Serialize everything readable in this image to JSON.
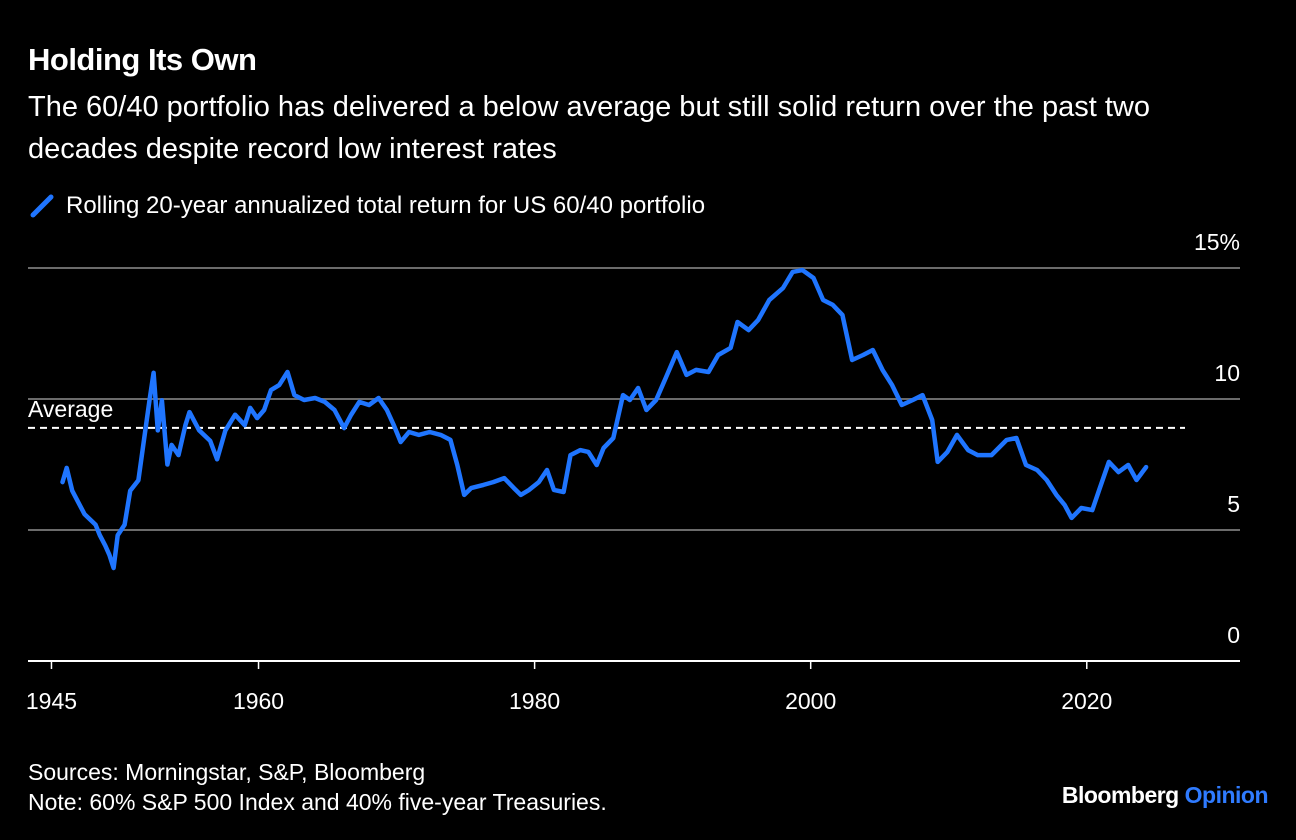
{
  "chart_data": {
    "type": "line",
    "title": "Holding Its Own",
    "subtitle": "The 60/40 portfolio has delivered a below average but still solid return over the past two decades despite record low interest rates",
    "sources": "Sources: Morningstar, S&P, Bloomberg",
    "note": "Note: 60% S&P 500 Index and 40% five-year Treasuries.",
    "brand": [
      "Bloomberg",
      "Opinion"
    ],
    "xlim": [
      1943.3,
      2031.1
    ],
    "xticks": [
      1945,
      1960,
      1980,
      2000,
      2020
    ],
    "ylim": [
      0,
      15
    ],
    "yticks": [
      0,
      5,
      10,
      {
        "value": 15,
        "label": "15%"
      }
    ],
    "grid": true,
    "annotations": [
      {
        "label": "Average",
        "value": 8.9
      }
    ],
    "x": [
      1945.8,
      1946.1,
      1946.5,
      1946.9,
      1947.4,
      1948.2,
      1948.5,
      1948.9,
      1949.2,
      1949.5,
      1949.8,
      1950.3,
      1950.7,
      1951.3,
      1951.8,
      1952.1,
      1952.4,
      1952.7,
      1953.0,
      1953.4,
      1953.7,
      1954.2,
      1954.7,
      1955.0,
      1955.7,
      1956.5,
      1957.0,
      1957.6,
      1958.3,
      1959.0,
      1959.4,
      1959.9,
      1960.4,
      1960.9,
      1961.5,
      1962.1,
      1962.6,
      1963.3,
      1964.1,
      1964.8,
      1965.5,
      1966.2,
      1966.7,
      1967.3,
      1968.0,
      1968.7,
      1969.3,
      1969.8,
      1970.3,
      1970.9,
      1971.6,
      1972.4,
      1973.2,
      1973.9,
      1974.4,
      1974.9,
      1975.4,
      1976.3,
      1977.0,
      1977.8,
      1978.5,
      1979.0,
      1979.6,
      1980.3,
      1980.9,
      1981.4,
      1982.1,
      1982.6,
      1983.3,
      1983.9,
      1984.5,
      1985.0,
      1985.7,
      1986.4,
      1986.9,
      1987.5,
      1988.1,
      1988.8,
      1989.5,
      1990.3,
      1991.0,
      1991.7,
      1992.6,
      1993.3,
      1994.2,
      1994.7,
      1995.5,
      1996.2,
      1997.0,
      1998.0,
      1998.7,
      1999.4,
      2000.2,
      2000.9,
      2001.6,
      2002.3,
      2003.0,
      2003.8,
      2004.5,
      2005.2,
      2005.9,
      2006.6,
      2007.4,
      2008.1,
      2008.8,
      2009.2,
      2009.9,
      2010.6,
      2011.4,
      2012.1,
      2013.1,
      2014.2,
      2014.9,
      2015.6,
      2016.4,
      2017.1,
      2017.8,
      2018.4,
      2018.9,
      2019.6,
      2020.4,
      2020.9,
      2021.6,
      2022.3,
      2023.0,
      2023.6,
      2024.3
    ],
    "series": [
      {
        "name": "Rolling 20-year annualized total return for US 60/40 portfolio",
        "color": "#1f75ff",
        "values": [
          6.83,
          7.37,
          6.5,
          6.1,
          5.6,
          5.2,
          4.8,
          4.4,
          4.05,
          3.55,
          4.8,
          5.2,
          6.5,
          6.9,
          8.8,
          9.95,
          11.0,
          8.8,
          9.95,
          7.5,
          8.25,
          7.86,
          9.0,
          9.5,
          8.8,
          8.4,
          7.7,
          8.8,
          9.4,
          9.0,
          9.66,
          9.27,
          9.58,
          10.34,
          10.53,
          11.03,
          10.15,
          9.96,
          10.04,
          9.89,
          9.58,
          8.89,
          9.39,
          9.89,
          9.77,
          10.04,
          9.58,
          9.0,
          8.36,
          8.74,
          8.63,
          8.74,
          8.63,
          8.44,
          7.48,
          6.34,
          6.6,
          6.72,
          6.83,
          6.98,
          6.6,
          6.34,
          6.53,
          6.83,
          7.29,
          6.53,
          6.45,
          7.86,
          8.05,
          7.98,
          7.48,
          8.13,
          8.51,
          10.15,
          9.96,
          10.42,
          9.58,
          9.96,
          10.8,
          11.79,
          10.92,
          11.11,
          11.03,
          11.68,
          11.95,
          12.94,
          12.63,
          13.02,
          13.78,
          14.24,
          14.85,
          14.92,
          14.62,
          13.78,
          13.59,
          13.21,
          11.49,
          11.68,
          11.87,
          11.11,
          10.53,
          9.77,
          9.96,
          10.15,
          9.2,
          7.6,
          7.98,
          8.63,
          8.05,
          7.86,
          7.86,
          8.44,
          8.51,
          7.48,
          7.29,
          6.91,
          6.34,
          5.95,
          5.46,
          5.84,
          5.76,
          6.53,
          7.6,
          7.21,
          7.48,
          6.91,
          7.4
        ]
      }
    ]
  }
}
